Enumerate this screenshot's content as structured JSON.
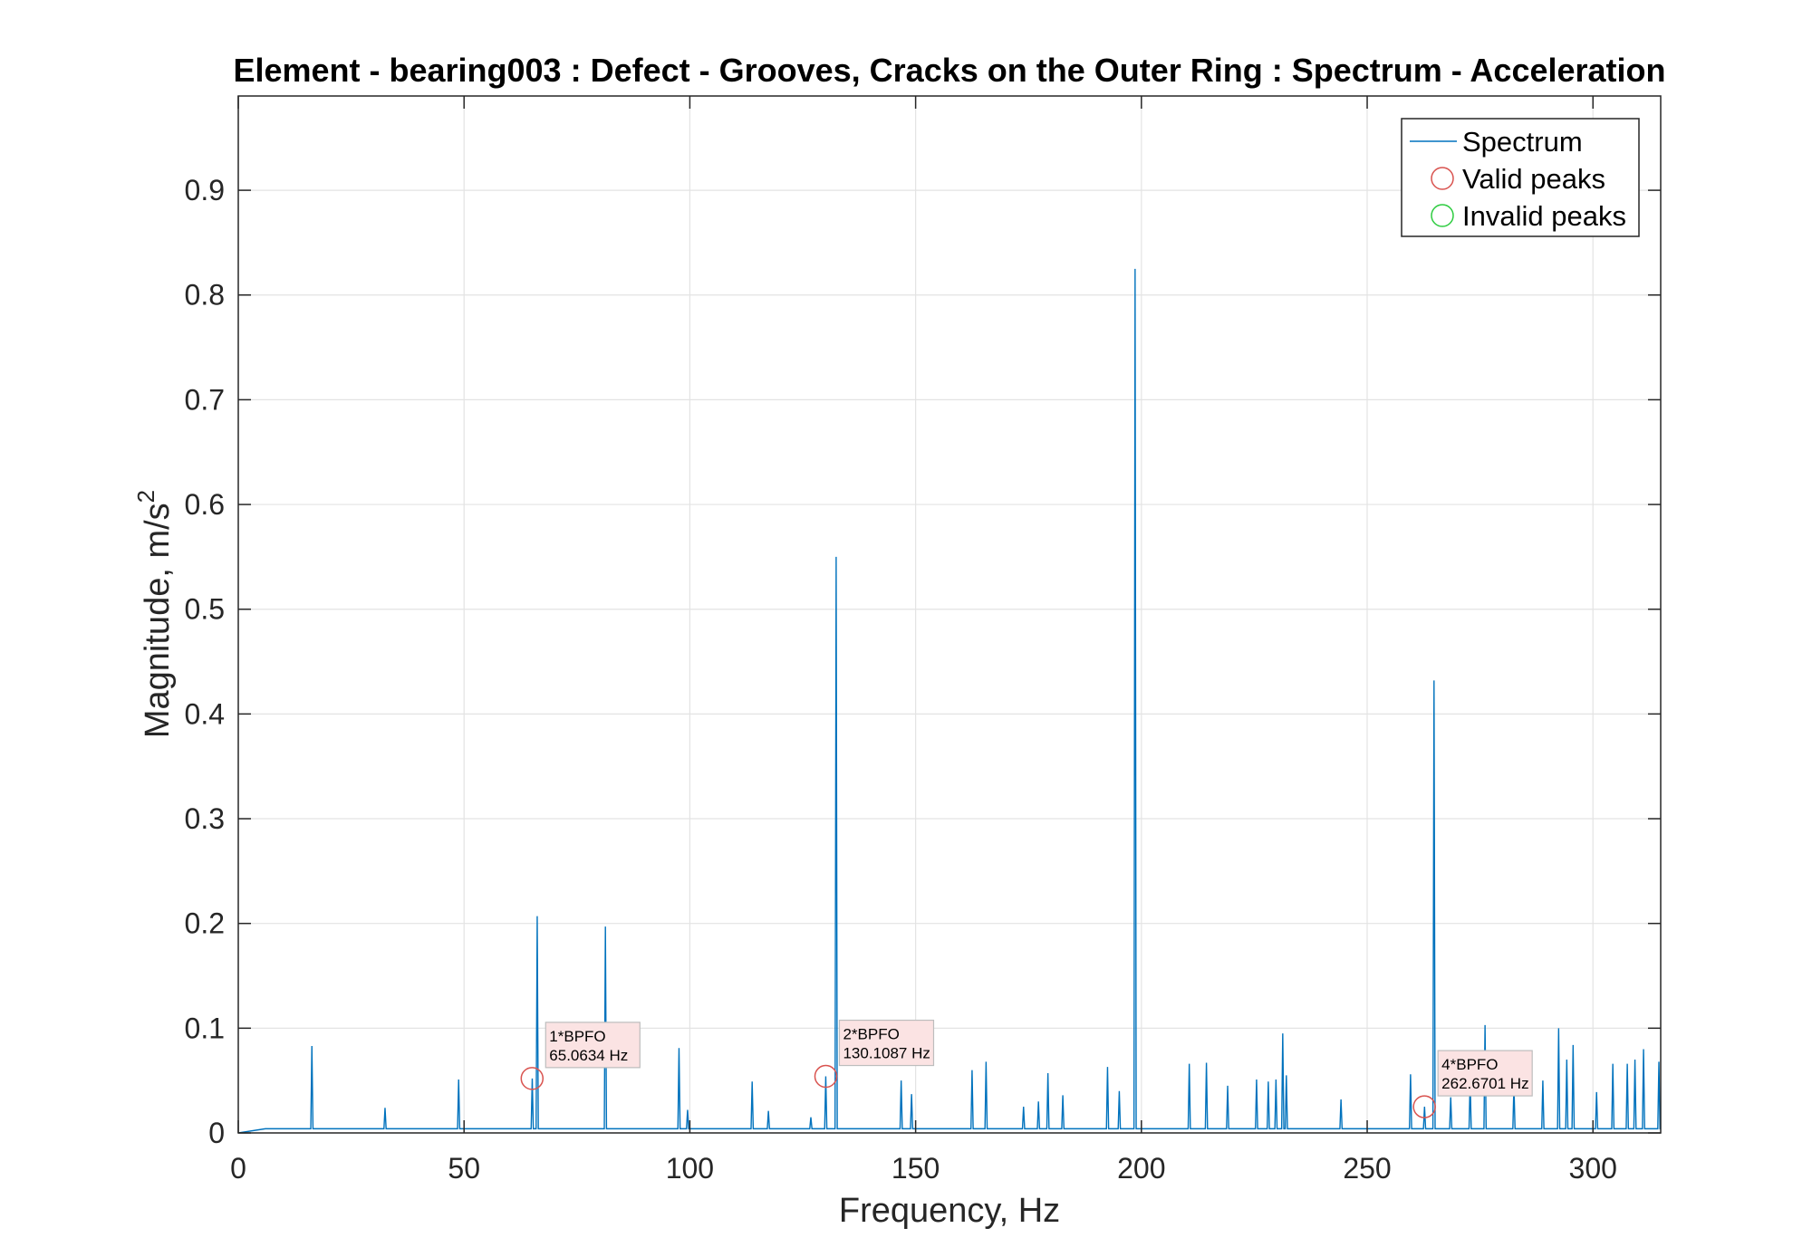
{
  "chart_data": {
    "type": "line",
    "title": "Element - bearing003 : Defect - Grooves, Cracks on the Outer Ring : Spectrum - Acceleration",
    "xlabel": "Frequency, Hz",
    "ylabel_main": "Magnitude, m/s",
    "ylabel_sup": "2",
    "xlim": [
      0,
      315
    ],
    "ylim": [
      0,
      0.99
    ],
    "xticks": [
      0,
      50,
      100,
      150,
      200,
      250,
      300
    ],
    "yticks": [
      0,
      0.1,
      0.2,
      0.3,
      0.4,
      0.5,
      0.6,
      0.7,
      0.8,
      0.9
    ],
    "grid": true,
    "legend_position": "top-right",
    "colors": {
      "spectrum": "#0072BD",
      "valid_peaks": "#D9534F",
      "invalid_peaks": "#2ECC40",
      "annotation_bg": "#FBE3E3"
    },
    "series": [
      {
        "name": "Spectrum",
        "noise_floor": 0.004,
        "peaks": [
          [
            16.3,
            0.083
          ],
          [
            32.5,
            0.024
          ],
          [
            48.8,
            0.051
          ],
          [
            65.1,
            0.052
          ],
          [
            66.2,
            0.207
          ],
          [
            81.3,
            0.197
          ],
          [
            97.6,
            0.081
          ],
          [
            99.5,
            0.022
          ],
          [
            113.8,
            0.049
          ],
          [
            117.4,
            0.021
          ],
          [
            126.8,
            0.015
          ],
          [
            130.1,
            0.054
          ],
          [
            132.4,
            0.55
          ],
          [
            146.8,
            0.05
          ],
          [
            149.1,
            0.037
          ],
          [
            162.5,
            0.06
          ],
          [
            165.6,
            0.068
          ],
          [
            173.9,
            0.025
          ],
          [
            177.2,
            0.03
          ],
          [
            179.3,
            0.057
          ],
          [
            182.6,
            0.036
          ],
          [
            192.5,
            0.063
          ],
          [
            195.1,
            0.04
          ],
          [
            198.6,
            0.825
          ],
          [
            210.6,
            0.066
          ],
          [
            214.4,
            0.067
          ],
          [
            219.1,
            0.045
          ],
          [
            225.5,
            0.051
          ],
          [
            228.1,
            0.049
          ],
          [
            229.8,
            0.051
          ],
          [
            231.3,
            0.095
          ],
          [
            232.1,
            0.055
          ],
          [
            244.2,
            0.032
          ],
          [
            259.6,
            0.056
          ],
          [
            262.7,
            0.025
          ],
          [
            264.8,
            0.432
          ],
          [
            268.5,
            0.034
          ],
          [
            272.8,
            0.05
          ],
          [
            276.1,
            0.103
          ],
          [
            282.5,
            0.045
          ],
          [
            288.9,
            0.05
          ],
          [
            292.4,
            0.1
          ],
          [
            294.2,
            0.07
          ],
          [
            295.6,
            0.084
          ],
          [
            300.8,
            0.039
          ],
          [
            304.4,
            0.066
          ],
          [
            307.6,
            0.066
          ],
          [
            309.3,
            0.07
          ],
          [
            311.2,
            0.08
          ],
          [
            314.6,
            0.068
          ]
        ]
      },
      {
        "name": "Valid peaks",
        "points": [
          [
            65.0634,
            0.052
          ],
          [
            130.1087,
            0.054
          ],
          [
            262.6701,
            0.025
          ]
        ]
      },
      {
        "name": "Invalid peaks",
        "points": []
      }
    ],
    "annotations": [
      {
        "line1": "1*BPFO",
        "line2": "65.0634 Hz",
        "x": 65.0634,
        "y": 0.052
      },
      {
        "line1": "2*BPFO",
        "line2": "130.1087 Hz",
        "x": 130.1087,
        "y": 0.054
      },
      {
        "line1": "4*BPFO",
        "line2": "262.6701 Hz",
        "x": 262.6701,
        "y": 0.025
      }
    ]
  }
}
